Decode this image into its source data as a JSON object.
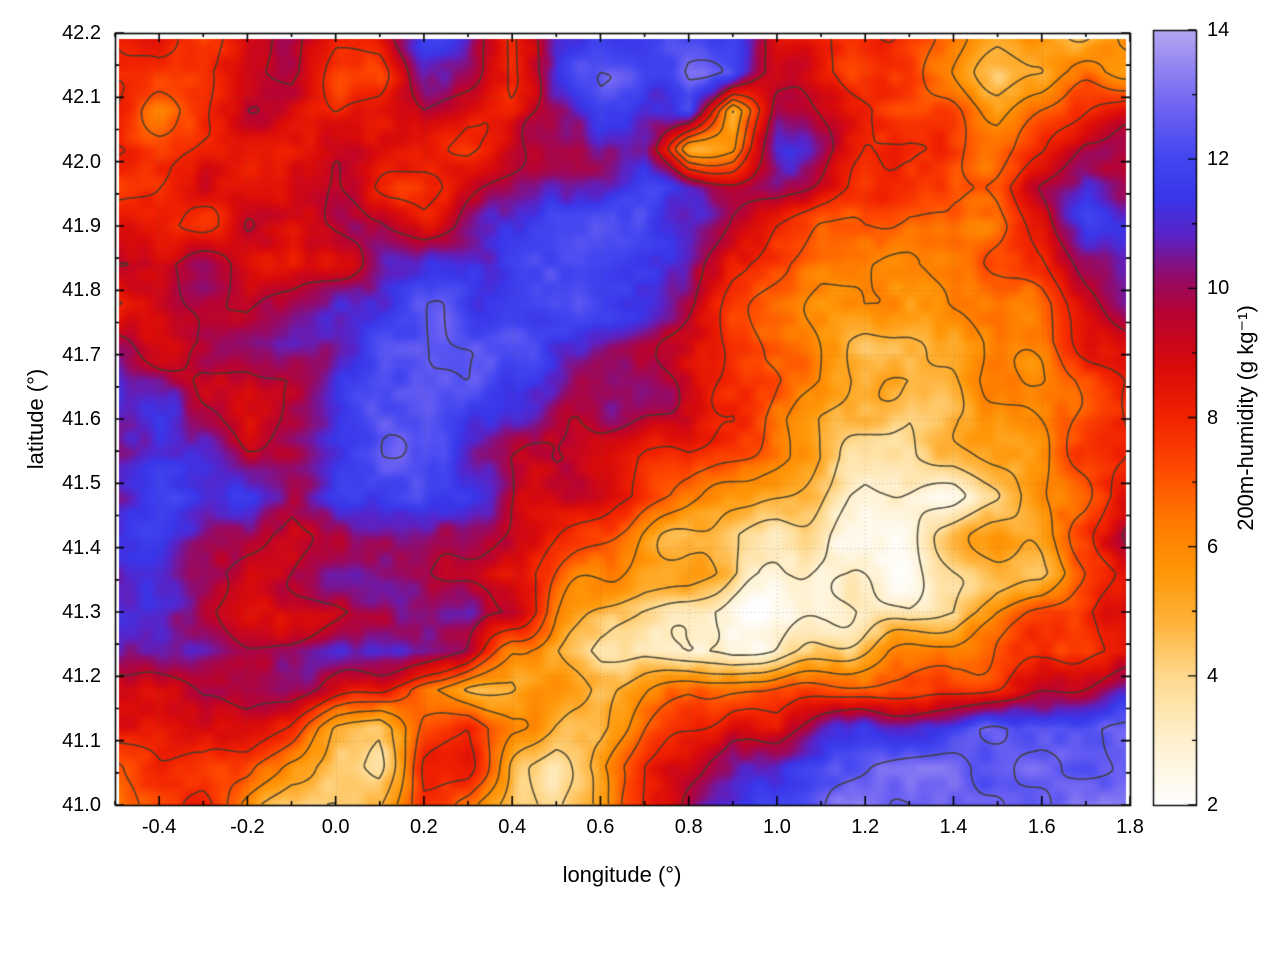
{
  "chart_data": {
    "type": "heatmap",
    "title": "",
    "xlabel": "longitude (°)",
    "ylabel": "latitude (°)",
    "colorbar_label": "200m-humidity (g kg⁻¹)",
    "x_range": [
      -0.5,
      1.8
    ],
    "y_range": [
      41.0,
      42.2
    ],
    "value_range": [
      2,
      14
    ],
    "x_ticks": [
      -0.4,
      -0.2,
      0.0,
      0.2,
      0.4,
      0.6,
      0.8,
      1.0,
      1.2,
      1.4,
      1.6,
      1.8
    ],
    "x_tick_labels": [
      "-0.4",
      "-0.2",
      "0.0",
      "0.2",
      "0.4",
      "0.6",
      "0.8",
      "1.0",
      "1.2",
      "1.4",
      "1.6",
      "1.8"
    ],
    "x_minor_step": 0.1,
    "y_ticks": [
      41.0,
      41.1,
      41.2,
      41.3,
      41.4,
      41.5,
      41.6,
      41.7,
      41.8,
      41.9,
      42.0,
      42.1,
      42.2
    ],
    "y_tick_labels": [
      "41.0",
      "41.1",
      "41.2",
      "41.3",
      "41.4",
      "41.5",
      "41.6",
      "41.7",
      "41.8",
      "41.9",
      "42.0",
      "42.1",
      "42.2"
    ],
    "y_minor_step": 0.05,
    "colorbar_ticks": [
      2,
      4,
      6,
      8,
      10,
      12,
      14
    ],
    "colorbar_tick_labels": [
      "2",
      "4",
      "6",
      "8",
      "10",
      "12",
      "14"
    ],
    "grid": "dotted gray at major ticks",
    "legend": "vertical colorbar at right",
    "palette": [
      [
        2,
        "#ffffff"
      ],
      [
        3,
        "#fff1cf"
      ],
      [
        4,
        "#ffd98d"
      ],
      [
        4.8,
        "#ffb43c"
      ],
      [
        5.6,
        "#ff9708"
      ],
      [
        6.4,
        "#ff7a00"
      ],
      [
        7.2,
        "#ff4a00"
      ],
      [
        8,
        "#f22300"
      ],
      [
        8.8,
        "#d90b0b"
      ],
      [
        9.6,
        "#b80332"
      ],
      [
        10.2,
        "#930c6b"
      ],
      [
        10.8,
        "#5c22c4"
      ],
      [
        11.4,
        "#3a36ea"
      ],
      [
        12,
        "#4245f0"
      ],
      [
        12.8,
        "#6f64f3"
      ],
      [
        13.4,
        "#9184f2"
      ],
      [
        14,
        "#b5a7f1"
      ]
    ],
    "contour_levels": [
      3,
      4,
      5,
      6,
      7,
      8,
      9.5,
      12.6
    ],
    "contour_color": "#3e3c2e",
    "texture": {
      "amp1": 0.8,
      "scale1": 46,
      "amp2": 0.35,
      "scale2": 15
    },
    "grid_nx": 24,
    "grid_ny": 21,
    "values_orientation": "rows north-to-south (lat 42.2 to 41.0), cols west-to-east (lon -0.5 to 1.8)",
    "values": [
      [
        8,
        8,
        7,
        9,
        10,
        8,
        8,
        11,
        11,
        8,
        11,
        12,
        12,
        12,
        12,
        8,
        8,
        8,
        7,
        6,
        5,
        5,
        5,
        6
      ],
      [
        7,
        8,
        8,
        9,
        10,
        8,
        8,
        11,
        10,
        8,
        11,
        12,
        12,
        13,
        12,
        9,
        8,
        7,
        7,
        6,
        5,
        5,
        6,
        6
      ],
      [
        8,
        7,
        8,
        9,
        9,
        8,
        9,
        10,
        9,
        8,
        10,
        12,
        11,
        12,
        5,
        10,
        9,
        8,
        7,
        7,
        6,
        7,
        8,
        9
      ],
      [
        8,
        8,
        8,
        8,
        8,
        9,
        9,
        9,
        8,
        9,
        10,
        11,
        11,
        5,
        6,
        11,
        10,
        8,
        8,
        7,
        7,
        8,
        10,
        10
      ],
      [
        7,
        8,
        9,
        8,
        8,
        9,
        8,
        8,
        9,
        10,
        11,
        11,
        12,
        11,
        10,
        10,
        9,
        8,
        7,
        7,
        8,
        10,
        11,
        10
      ],
      [
        8,
        8,
        8,
        9,
        8,
        9,
        10,
        9,
        10,
        11,
        12,
        12,
        12,
        11,
        9,
        8,
        7,
        7,
        6,
        6,
        7,
        9,
        11,
        11
      ],
      [
        9,
        10,
        10,
        9,
        8,
        9,
        10,
        11,
        12,
        12,
        12,
        12,
        11,
        10,
        8,
        7,
        6,
        6,
        6,
        6,
        7,
        8,
        10,
        11
      ],
      [
        8,
        9,
        10,
        9,
        10,
        11,
        11,
        12,
        12,
        12,
        12,
        11,
        11,
        10,
        8,
        7,
        6,
        6,
        5,
        6,
        6,
        7,
        9,
        10
      ],
      [
        10,
        9,
        9,
        10,
        11,
        11,
        12,
        12,
        12,
        12,
        11,
        11,
        10,
        9,
        8,
        7,
        6,
        5,
        5,
        5,
        6,
        7,
        8,
        9
      ],
      [
        11,
        10,
        9,
        9,
        10,
        11,
        12,
        12,
        12,
        11,
        11,
        10,
        10,
        9,
        8,
        7,
        6,
        5,
        5,
        5,
        6,
        6,
        7,
        8
      ],
      [
        11,
        11,
        10,
        9,
        10,
        11,
        12,
        12,
        11,
        11,
        10,
        10,
        9,
        9,
        8,
        6,
        5,
        5,
        4,
        5,
        5,
        6,
        7,
        8
      ],
      [
        11,
        12,
        11,
        10,
        10,
        11,
        12,
        12,
        11,
        10,
        10,
        9,
        8,
        8,
        7,
        6,
        5,
        4,
        4,
        4,
        5,
        6,
        7,
        8
      ],
      [
        11,
        12,
        12,
        11,
        10,
        11,
        11,
        12,
        11,
        10,
        9,
        9,
        8,
        7,
        6,
        5,
        4,
        3,
        3,
        3,
        4,
        6,
        7,
        8
      ],
      [
        11,
        12,
        11,
        10,
        9,
        10,
        11,
        11,
        10,
        9,
        8,
        7,
        6,
        5,
        4,
        3,
        3,
        3,
        3,
        4,
        5,
        6,
        7,
        10
      ],
      [
        11,
        11,
        10,
        9,
        9,
        10,
        10,
        10,
        9,
        8,
        7,
        6,
        5,
        5,
        4,
        3,
        2.5,
        3,
        3,
        4,
        5,
        5,
        7,
        9
      ],
      [
        11,
        11,
        10,
        9,
        9,
        9,
        10,
        11,
        11,
        9,
        6,
        5,
        4,
        3,
        2,
        2,
        2.5,
        3.5,
        3,
        4,
        6,
        7,
        8,
        10
      ],
      [
        10,
        11,
        11,
        10,
        10,
        11,
        11,
        11,
        10,
        6,
        5,
        4,
        4,
        3,
        2.5,
        3,
        4,
        5,
        6,
        6,
        7,
        7,
        8,
        9
      ],
      [
        8,
        9,
        10,
        10,
        10,
        9,
        8,
        6,
        5,
        5,
        6,
        5,
        6,
        7,
        7,
        7,
        7,
        7,
        7,
        7,
        8,
        9,
        10,
        11
      ],
      [
        8,
        8,
        9,
        9,
        8,
        5,
        4,
        7,
        8,
        6,
        5,
        5,
        7,
        8,
        9,
        8,
        10,
        11,
        11,
        12,
        12.5,
        13,
        13,
        13
      ],
      [
        7,
        8,
        8,
        7,
        5,
        4,
        4,
        8,
        8,
        5,
        4,
        6,
        8,
        9,
        11,
        11,
        12,
        12.5,
        13,
        13,
        13,
        13,
        13,
        13
      ],
      [
        7,
        7,
        8,
        6,
        4,
        4,
        5,
        8,
        7,
        5,
        4,
        5,
        8,
        10,
        11,
        12,
        12.5,
        13,
        13,
        13,
        13,
        13,
        13,
        13
      ]
    ]
  }
}
